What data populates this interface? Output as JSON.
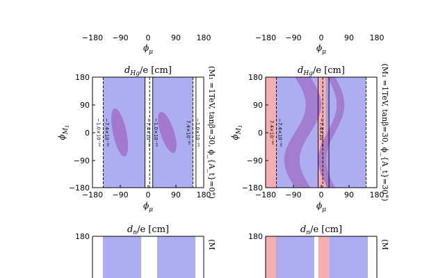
{
  "chart_data": [
    {
      "type": "contour",
      "title": "d_{Hg}/e [cm]",
      "title_parts": {
        "sym": "d",
        "sub": "Hg",
        "rest": "/e [cm]"
      },
      "xlabel": "ϕ_μ",
      "ylabel": "ϕ_{M1}",
      "xlim": [
        -180,
        180
      ],
      "ylim": [
        -180,
        180
      ],
      "xticks": [
        "−180",
        "−90",
        "0",
        "90",
        "180"
      ],
      "yticks": [
        "180",
        "90",
        "0",
        "−90",
        "−180"
      ],
      "side_text": "(M_1 = 1TeV, tanβ = 30, ϕ_{A_t} = 0°)",
      "side_text_display": "(M₁ =1TeV, tanβ=30, ϕ_{A_t}=0°)",
      "contour_labels": [
        "−1.0×10⁻²⁹",
        "−7.4×10⁻³⁰",
        "−7.4×10⁻³⁰",
        "−1.0×10⁻²⁹",
        "7.4×10⁻³⁰",
        "−1.0×10⁻²⁹"
      ],
      "blue_bands_phi_mu": [
        [
          -145,
          -10
        ],
        [
          15,
          145
        ]
      ],
      "purple_ellipses": [
        {
          "center": [
            -92,
            0
          ],
          "half_width_phi_mu": 22,
          "half_height_phi_M1": 80,
          "tilt_deg": -12
        },
        {
          "center": [
            62,
            0
          ],
          "half_width_phi_mu": 22,
          "half_height_phi_M1": 70,
          "tilt_deg": -18
        }
      ],
      "colors": {
        "blue": "#9999ee",
        "purple": "#a070c8"
      }
    },
    {
      "type": "contour",
      "title": "d_{Hg}/e [cm]",
      "title_parts": {
        "sym": "d",
        "sub": "Hg",
        "rest": "/e [cm]"
      },
      "xlabel": "ϕ_μ",
      "ylabel": "ϕ_{M1}",
      "xlim": [
        -180,
        180
      ],
      "ylim": [
        -180,
        180
      ],
      "xticks": [
        "−180",
        "−90",
        "0",
        "90",
        "180"
      ],
      "yticks": [
        "180",
        "90",
        "0",
        "−90",
        "−180"
      ],
      "side_text": "(M_1 = 1TeV, tanβ = 30, ϕ_{A_t} = 30°)",
      "side_text_display": "(M₁ =1TeV, tanβ=30, ϕ_{A_t}=30°)",
      "contour_labels": [
        "7.4×10⁻³⁰",
        "−7.4×10⁻³⁰",
        "−7.4×10⁻³⁰"
      ],
      "blue_bands_phi_mu": [
        [
          -145,
          -10
        ],
        [
          15,
          145
        ]
      ],
      "red_bands_phi_mu": [
        [
          -180,
          -145
        ],
        [
          -10,
          25
        ]
      ],
      "colors": {
        "blue": "#9999ee",
        "red": "#f4a0a0",
        "purple": "#a070c8"
      }
    },
    {
      "type": "contour",
      "title": "d_n/e [cm]",
      "title_parts": {
        "sym": "d",
        "sub": "n",
        "rest": "/e [cm]"
      },
      "ylabel": "ϕ_{M1}",
      "yticks": [
        "180"
      ],
      "side_text": "(M"
    },
    {
      "type": "contour",
      "title": "d_n/e [cm]",
      "title_parts": {
        "sym": "d",
        "sub": "n",
        "rest": "/e [cm]"
      },
      "ylabel": "ϕ_{M1}",
      "yticks": [
        "180"
      ],
      "side_text": "(M"
    }
  ],
  "top_axes": {
    "xticks": [
      "−180",
      "−90",
      "0",
      "90",
      "180"
    ],
    "xlabel": "ϕ_μ"
  }
}
